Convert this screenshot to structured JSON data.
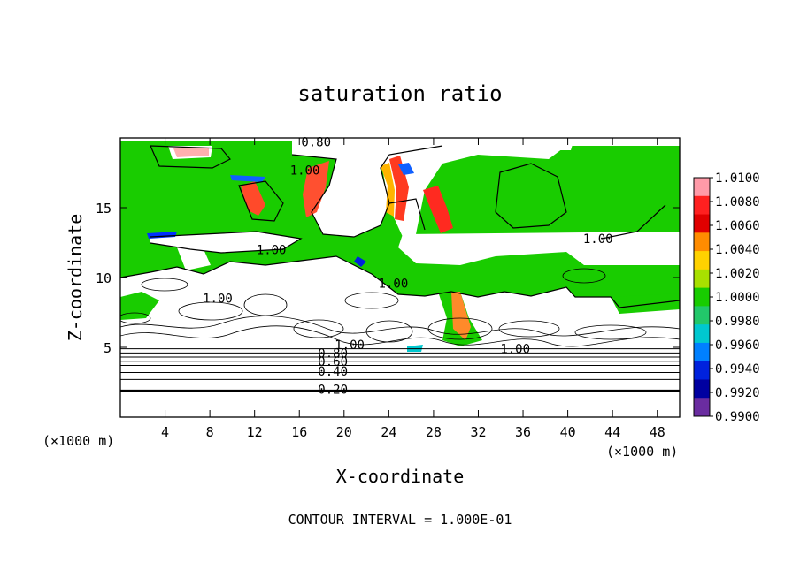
{
  "chart_data": {
    "type": "heatmap",
    "title": "saturation ratio",
    "xlabel": "X-coordinate",
    "ylabel": "Z-coordinate",
    "x_unit": "(×1000 m)",
    "xlim": [
      0,
      50
    ],
    "ylim": [
      0,
      20
    ],
    "x_ticks": [
      4,
      8,
      12,
      16,
      20,
      24,
      28,
      32,
      36,
      40,
      44,
      48
    ],
    "y_ticks": [
      5,
      10,
      15
    ],
    "footer": "CONTOUR INTERVAL = 1.000E-01",
    "colorbar": {
      "labels": [
        "1.0100",
        "1.0080",
        "1.0060",
        "1.0040",
        "1.0020",
        "1.0000",
        "0.9980",
        "0.9960",
        "0.9940",
        "0.9920",
        "0.9900"
      ],
      "colors": [
        "#ff9aa8",
        "#ff2020",
        "#e00000",
        "#ff8c00",
        "#ffd200",
        "#a8e000",
        "#18cc00",
        "#22c86a",
        "#00c8d0",
        "#0080ff",
        "#0022dd",
        "#0000a0",
        "#6a2ca0"
      ]
    },
    "contour_labels": [
      {
        "text": "0.20",
        "x": 19.0,
        "z": 2.0
      },
      {
        "text": "0.40",
        "x": 19.0,
        "z": 3.3
      },
      {
        "text": "0.60",
        "x": 19.0,
        "z": 4.0
      },
      {
        "text": "0.80",
        "x": 19.0,
        "z": 4.6
      },
      {
        "text": "1.00",
        "x": 20.5,
        "z": 5.2
      },
      {
        "text": "1.00",
        "x": 35.3,
        "z": 4.9
      },
      {
        "text": "1.00",
        "x": 8.7,
        "z": 8.5
      },
      {
        "text": "1.00",
        "x": 13.5,
        "z": 12.0
      },
      {
        "text": "1.00",
        "x": 24.4,
        "z": 9.6
      },
      {
        "text": "1.00",
        "x": 16.5,
        "z": 17.7
      },
      {
        "text": "1.00",
        "x": 42.7,
        "z": 12.8
      },
      {
        "text": "0.80",
        "x": 17.5,
        "z": 19.7
      }
    ],
    "levels": [
      {
        "z": 1.9,
        "w": 2.2
      },
      {
        "z": 2.7,
        "w": 1.0
      },
      {
        "z": 3.2,
        "w": 1.0
      },
      {
        "z": 3.7,
        "w": 1.0
      },
      {
        "z": 4.0,
        "w": 1.0
      },
      {
        "z": 4.3,
        "w": 1.0
      },
      {
        "z": 4.6,
        "w": 1.0
      },
      {
        "z": 4.9,
        "w": 1.0
      }
    ]
  }
}
